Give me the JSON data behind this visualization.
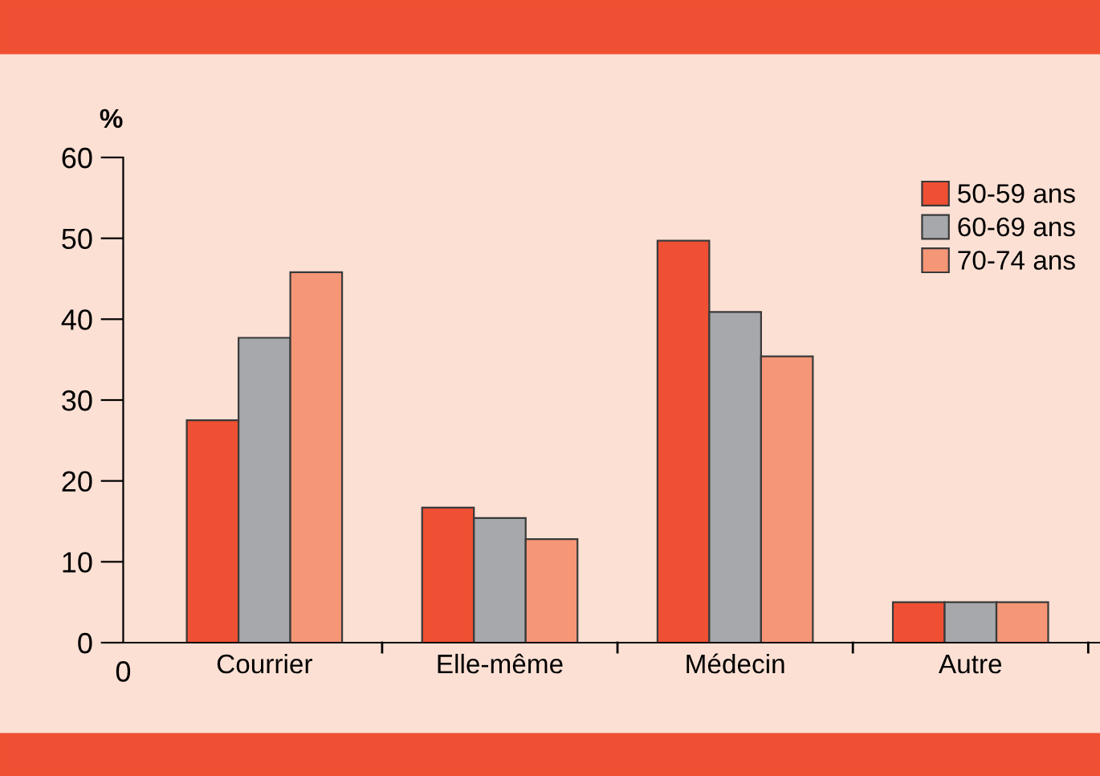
{
  "chart_data": {
    "type": "bar",
    "ylabel": "%",
    "categories": [
      "Courrier",
      "Elle-même",
      "Médecin",
      "Autre"
    ],
    "series": [
      {
        "name": "50-59 ans",
        "color": "#ef5033",
        "values": [
          27.5,
          16.7,
          49.7,
          5
        ]
      },
      {
        "name": "60-69 ans",
        "color": "#a7a8ab",
        "values": [
          37.7,
          15.4,
          40.9,
          5
        ]
      },
      {
        "name": "70-74 ans",
        "color": "#f59677",
        "values": [
          45.8,
          12.8,
          35.4,
          5
        ]
      }
    ],
    "ylim": [
      0,
      60
    ],
    "yticks": [
      0,
      10,
      20,
      30,
      40,
      50,
      60
    ],
    "grid": false,
    "legend": "top right",
    "annotations": [
      "0"
    ]
  }
}
